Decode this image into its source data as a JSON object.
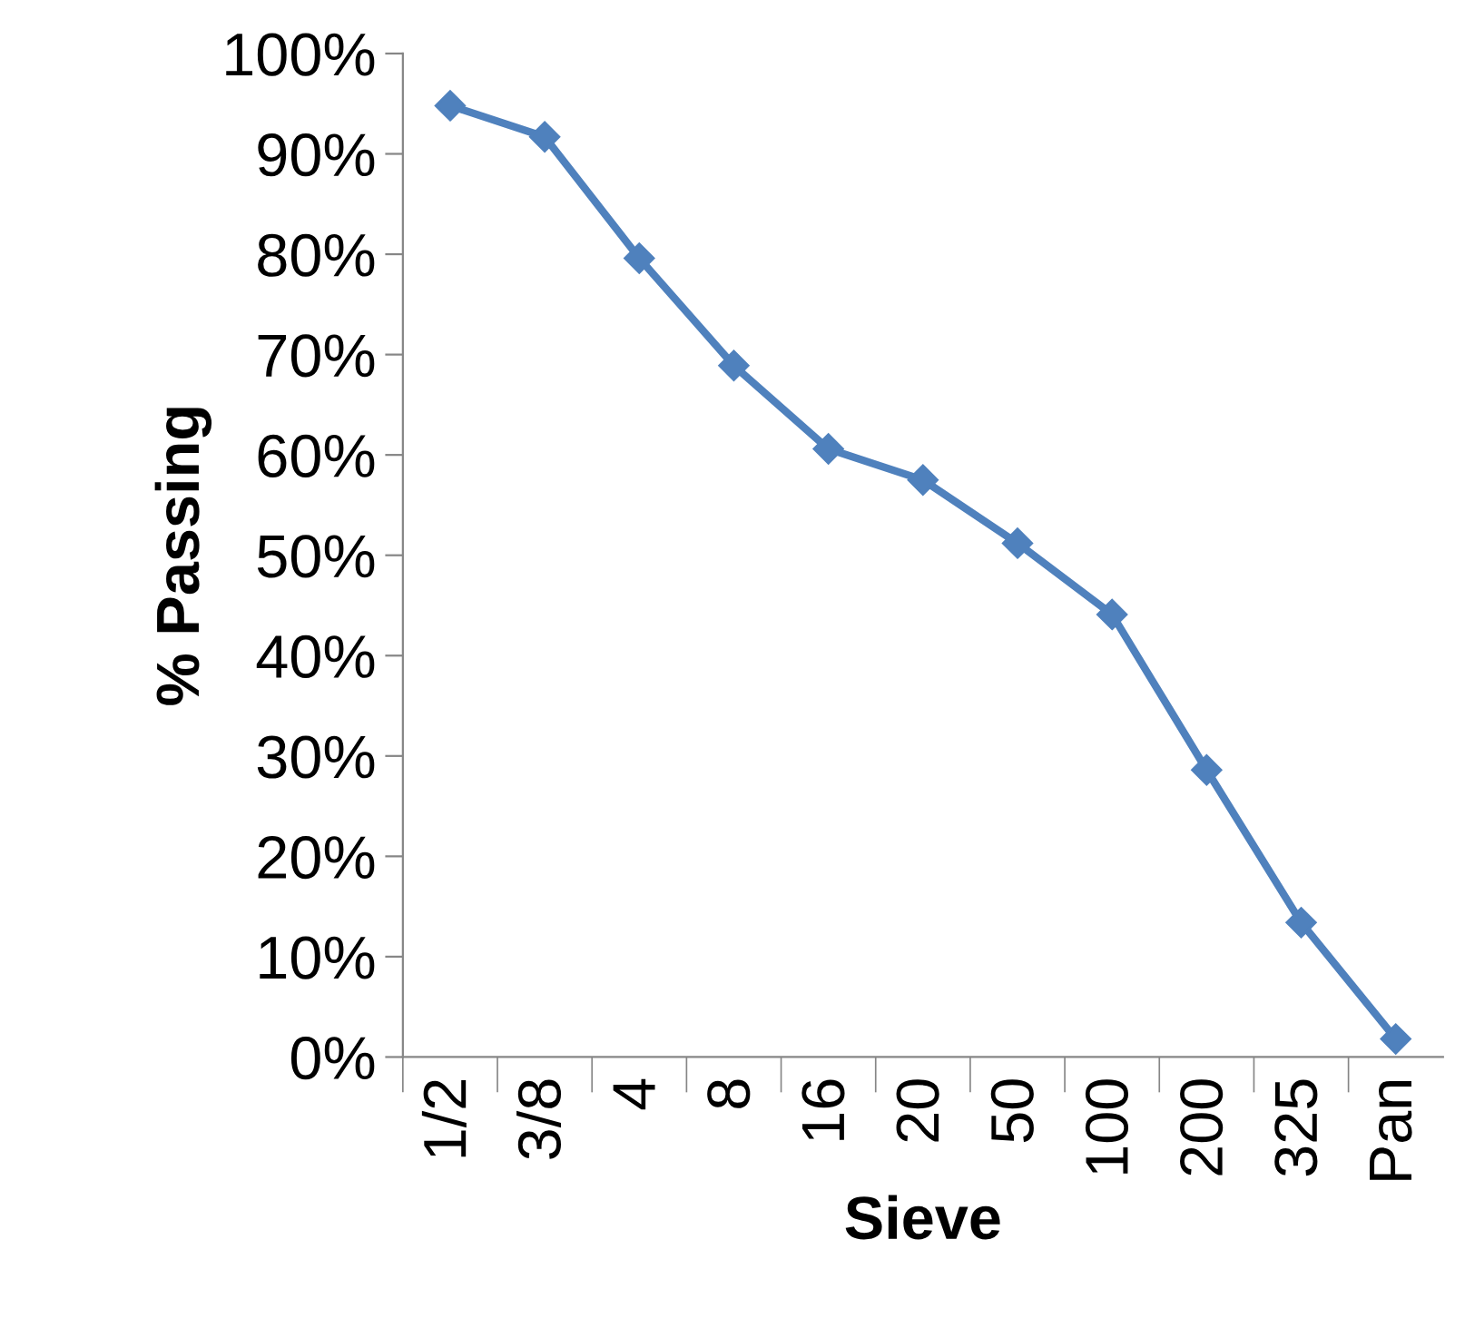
{
  "chart_data": {
    "type": "line",
    "xlabel": "Sieve",
    "ylabel": "% Passing",
    "categories": [
      "1/2",
      "3/8",
      "4",
      "8",
      "16",
      "20",
      "50",
      "100",
      "200",
      "325",
      "Pan"
    ],
    "series": [
      {
        "color": "#4f81bd",
        "values": [
          94.8,
          91.7,
          79.6,
          68.9,
          60.6,
          57.5,
          51.2,
          44.1,
          28.6,
          13.4,
          1.8
        ]
      }
    ],
    "ylim": [
      0,
      100
    ],
    "yticks": [
      {
        "value": 0,
        "label": "0%"
      },
      {
        "value": 10,
        "label": "10%"
      },
      {
        "value": 20,
        "label": "20%"
      },
      {
        "value": 30,
        "label": "30%"
      },
      {
        "value": 40,
        "label": "40%"
      },
      {
        "value": 50,
        "label": "50%"
      },
      {
        "value": 60,
        "label": "60%"
      },
      {
        "value": 70,
        "label": "70%"
      },
      {
        "value": 80,
        "label": "80%"
      },
      {
        "value": 90,
        "label": "90%"
      },
      {
        "value": 100,
        "label": "100%"
      }
    ],
    "grid": false,
    "legend": false,
    "marker": "diamond",
    "line_style": "solid"
  }
}
